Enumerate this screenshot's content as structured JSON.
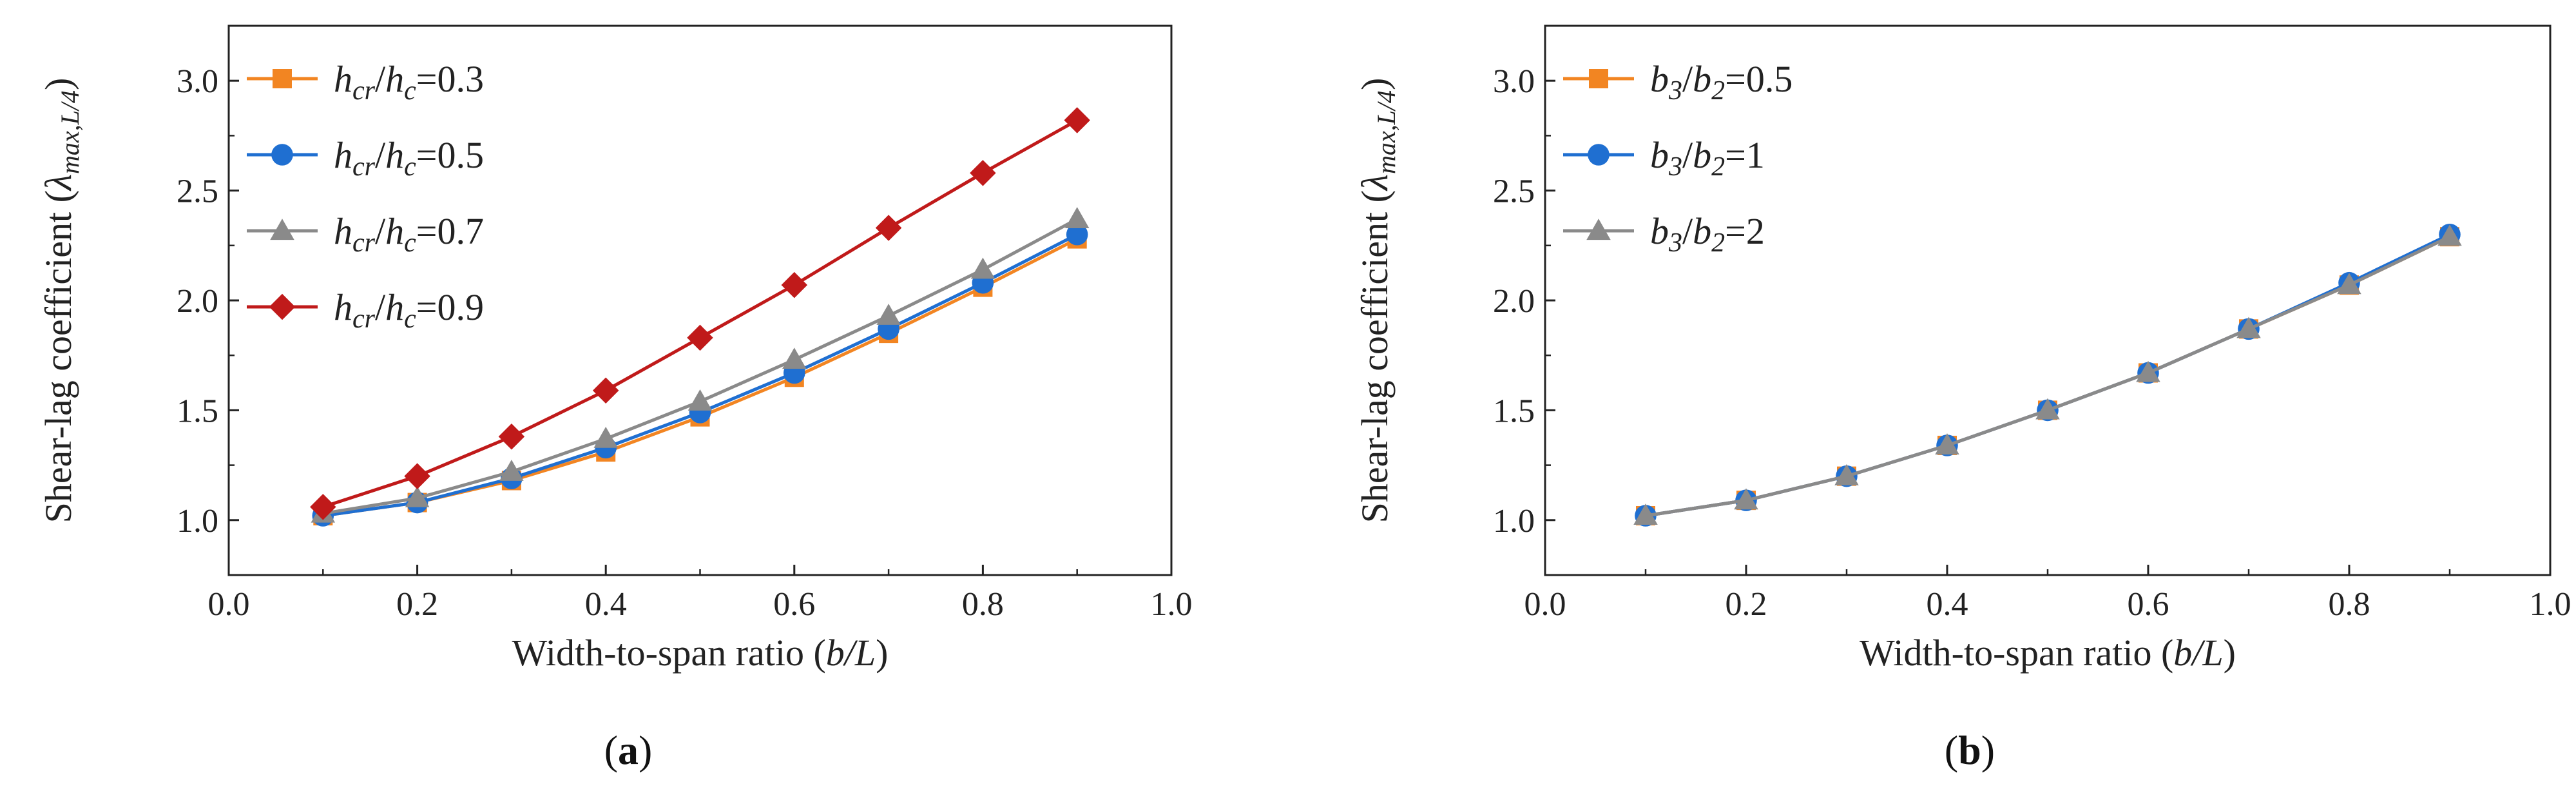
{
  "chart_data": [
    {
      "type": "line",
      "panel_label": "(a)",
      "panel_letter": "a",
      "xlabel": "Width-to-span ratio (b/L)",
      "xlabel_parts": {
        "prefix": "Width-to-span ratio (",
        "var": "b/L",
        "suffix": ")"
      },
      "ylabel": "Shear-lag coefficient (λmax,L/4)",
      "ylabel_parts": {
        "prefix": "Shear-lag coefficient (",
        "lambda": "λ",
        "sub": "max,L/4",
        "suffix": ")"
      },
      "xlim": [
        0.0,
        1.0
      ],
      "ylim": [
        0.75,
        3.25
      ],
      "xticks": [
        "0.0",
        "0.2",
        "0.4",
        "0.6",
        "0.8",
        "1.0"
      ],
      "xtick_values": [
        0.0,
        0.2,
        0.4,
        0.6,
        0.8,
        1.0
      ],
      "yticks": [
        "1.0",
        "1.5",
        "2.0",
        "2.5",
        "3.0"
      ],
      "ytick_values": [
        1.0,
        1.5,
        2.0,
        2.5,
        3.0
      ],
      "legend_position": "top-left",
      "x": [
        0.1,
        0.2,
        0.3,
        0.4,
        0.5,
        0.6,
        0.7,
        0.8,
        0.9
      ],
      "series": [
        {
          "name": "hcr/hc=0.3",
          "label_parts": {
            "a": "h",
            "a_sub": "cr",
            "sep": "/",
            "b": "h",
            "b_sub": "c",
            "eq": "=0.3"
          },
          "marker": "square",
          "color": "#F28522",
          "values": [
            1.02,
            1.08,
            1.18,
            1.31,
            1.47,
            1.65,
            1.85,
            2.06,
            2.28
          ]
        },
        {
          "name": "hcr/hc=0.5",
          "label_parts": {
            "a": "h",
            "a_sub": "cr",
            "sep": "/",
            "b": "h",
            "b_sub": "c",
            "eq": "=0.5"
          },
          "marker": "circle",
          "color": "#1F6FD1",
          "values": [
            1.02,
            1.08,
            1.19,
            1.33,
            1.49,
            1.67,
            1.87,
            2.08,
            2.3
          ]
        },
        {
          "name": "hcr/hc=0.7",
          "label_parts": {
            "a": "h",
            "a_sub": "cr",
            "sep": "/",
            "b": "h",
            "b_sub": "c",
            "eq": "=0.7"
          },
          "marker": "triangle",
          "color": "#8A8A8A",
          "values": [
            1.03,
            1.1,
            1.22,
            1.37,
            1.54,
            1.73,
            1.93,
            2.14,
            2.37
          ]
        },
        {
          "name": "hcr/hc=0.9",
          "label_parts": {
            "a": "h",
            "a_sub": "cr",
            "sep": "/",
            "b": "h",
            "b_sub": "c",
            "eq": "=0.9"
          },
          "marker": "diamond",
          "color": "#C01A1A",
          "values": [
            1.06,
            1.2,
            1.38,
            1.59,
            1.83,
            2.07,
            2.33,
            2.58,
            2.82
          ]
        }
      ]
    },
    {
      "type": "line",
      "panel_label": "(b)",
      "panel_letter": "b",
      "xlabel": "Width-to-span ratio (b/L)",
      "xlabel_parts": {
        "prefix": "Width-to-span ratio (",
        "var": "b/L",
        "suffix": ")"
      },
      "ylabel": "Shear-lag coefficient (λmax,L/4)",
      "ylabel_parts": {
        "prefix": "Shear-lag coefficient (",
        "lambda": "λ",
        "sub": "max,L/4",
        "suffix": ")"
      },
      "xlim": [
        0.0,
        1.0
      ],
      "ylim": [
        0.75,
        3.25
      ],
      "xticks": [
        "0.0",
        "0.2",
        "0.4",
        "0.6",
        "0.8",
        "1.0"
      ],
      "xtick_values": [
        0.0,
        0.2,
        0.4,
        0.6,
        0.8,
        1.0
      ],
      "yticks": [
        "1.0",
        "1.5",
        "2.0",
        "2.5",
        "3.0"
      ],
      "ytick_values": [
        1.0,
        1.5,
        2.0,
        2.5,
        3.0
      ],
      "legend_position": "top-left",
      "x": [
        0.1,
        0.2,
        0.3,
        0.4,
        0.5,
        0.6,
        0.7,
        0.8,
        0.9
      ],
      "series": [
        {
          "name": "b3/b2=0.5",
          "label_parts": {
            "a": "b",
            "a_sub": "3",
            "sep": "/",
            "b": "b",
            "b_sub": "2",
            "eq": "=0.5"
          },
          "marker": "square",
          "color": "#F28522",
          "values": [
            1.02,
            1.09,
            1.2,
            1.34,
            1.5,
            1.67,
            1.87,
            2.07,
            2.29
          ]
        },
        {
          "name": "b3/b2=1",
          "label_parts": {
            "a": "b",
            "a_sub": "3",
            "sep": "/",
            "b": "b",
            "b_sub": "2",
            "eq": "=1"
          },
          "marker": "circle",
          "color": "#1F6FD1",
          "values": [
            1.02,
            1.09,
            1.2,
            1.34,
            1.5,
            1.67,
            1.87,
            2.08,
            2.3
          ]
        },
        {
          "name": "b3/b2=2",
          "label_parts": {
            "a": "b",
            "a_sub": "3",
            "sep": "/",
            "b": "b",
            "b_sub": "2",
            "eq": "=2"
          },
          "marker": "triangle",
          "color": "#8A8A8A",
          "values": [
            1.02,
            1.09,
            1.2,
            1.34,
            1.5,
            1.67,
            1.87,
            2.07,
            2.29
          ]
        }
      ]
    }
  ]
}
